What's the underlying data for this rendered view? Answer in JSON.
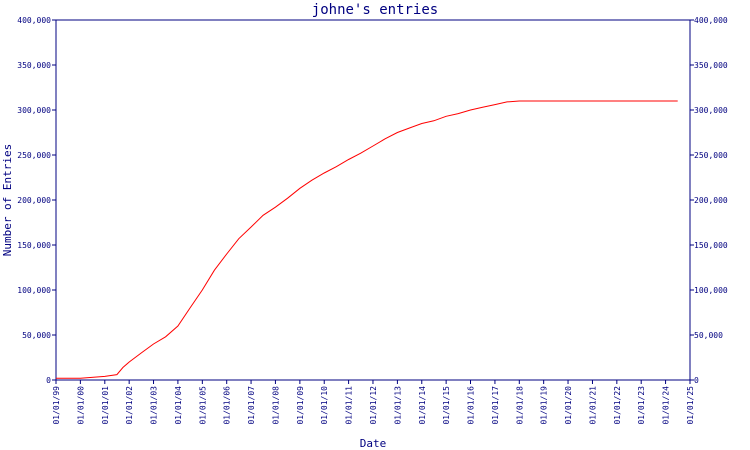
{
  "chart_data": {
    "type": "line",
    "title": "johne's entries",
    "xlabel": "Date",
    "ylabel": "Number of Entries",
    "ylim": [
      0,
      400000
    ],
    "y_ticks": [
      0,
      50000,
      100000,
      150000,
      200000,
      250000,
      300000,
      350000,
      400000
    ],
    "y_tick_labels": [
      "0",
      "50,000",
      "100,000",
      "150,000",
      "200,000",
      "250,000",
      "300,000",
      "350,000",
      "400,000"
    ],
    "x_range": [
      "1999-01-01",
      "2025-01-01"
    ],
    "x_ticks": [
      "1999-01-01",
      "2000-01-01",
      "2001-01-01",
      "2002-01-01",
      "2003-01-01",
      "2004-01-01",
      "2005-01-01",
      "2006-01-01",
      "2007-01-01",
      "2008-01-01",
      "2009-01-01",
      "2010-01-01",
      "2011-01-01",
      "2012-01-01",
      "2013-01-01",
      "2014-01-01",
      "2015-01-01",
      "2016-01-01",
      "2017-01-01",
      "2018-01-01",
      "2019-01-01",
      "2020-01-01",
      "2021-01-01",
      "2022-01-01",
      "2023-01-01",
      "2024-01-01",
      "2025-01-01"
    ],
    "x_tick_labels": [
      "01/01/99",
      "01/01/00",
      "01/01/01",
      "01/01/02",
      "01/01/03",
      "01/01/04",
      "01/01/05",
      "01/01/06",
      "01/01/07",
      "01/01/08",
      "01/01/09",
      "01/01/10",
      "01/01/11",
      "01/01/12",
      "01/01/13",
      "01/01/14",
      "01/01/15",
      "01/01/16",
      "01/01/17",
      "01/01/18",
      "01/01/19",
      "01/01/20",
      "01/01/21",
      "01/01/22",
      "01/01/23",
      "01/01/24",
      "01/01/25"
    ],
    "grid": false,
    "series": [
      {
        "color": "#ff0000",
        "x": [
          "1999-01-01",
          "2000-01-01",
          "2001-01-01",
          "2001-07-01",
          "2001-10-01",
          "2002-01-01",
          "2002-07-01",
          "2003-01-01",
          "2003-07-01",
          "2004-01-01",
          "2004-07-01",
          "2005-01-01",
          "2005-07-01",
          "2006-01-01",
          "2006-07-01",
          "2007-01-01",
          "2007-07-01",
          "2008-01-01",
          "2008-07-01",
          "2009-01-01",
          "2009-07-01",
          "2010-01-01",
          "2010-07-01",
          "2011-01-01",
          "2011-07-01",
          "2012-01-01",
          "2012-07-01",
          "2013-01-01",
          "2013-07-01",
          "2014-01-01",
          "2014-07-01",
          "2015-01-01",
          "2015-07-01",
          "2016-01-01",
          "2016-07-01",
          "2017-01-01",
          "2017-07-01",
          "2018-01-01",
          "2019-01-01",
          "2020-01-01",
          "2021-01-01",
          "2022-01-01",
          "2023-01-01",
          "2024-01-01",
          "2024-07-01"
        ],
        "y": [
          2000,
          2000,
          4000,
          6000,
          14000,
          20000,
          30000,
          40000,
          48000,
          60000,
          80000,
          100000,
          122000,
          140000,
          157000,
          170000,
          183000,
          192000,
          202000,
          213000,
          222000,
          230000,
          237000,
          245000,
          252000,
          260000,
          268000,
          275000,
          280000,
          285000,
          288000,
          293000,
          296000,
          300000,
          303000,
          306000,
          309000,
          310000,
          310000,
          310000,
          310000,
          310000,
          310000,
          310000,
          310000
        ]
      }
    ]
  }
}
